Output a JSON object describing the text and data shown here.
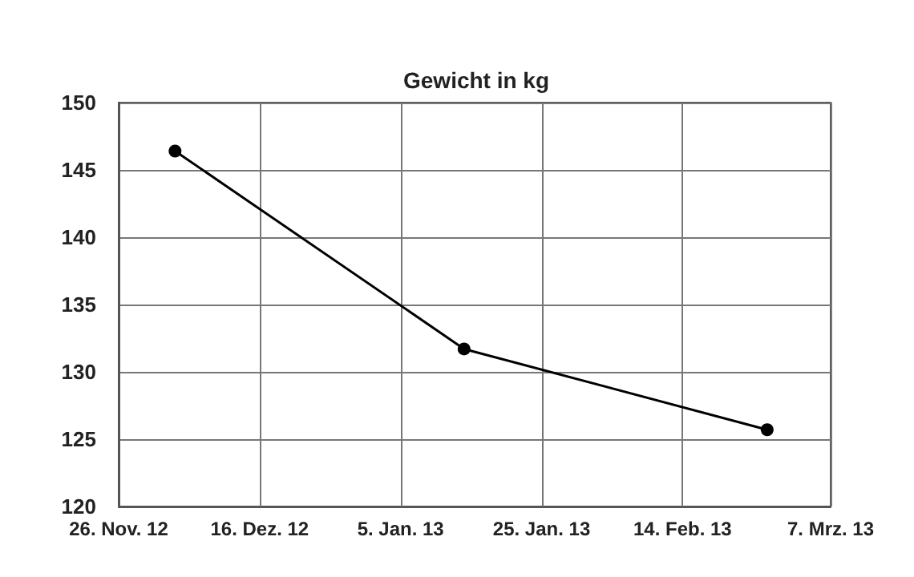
{
  "chart_data": {
    "type": "line",
    "title": "Gewicht in kg",
    "x": [
      "2012-12-04",
      "2013-01-14",
      "2013-02-26"
    ],
    "series": [
      {
        "color": "#000000",
        "values": [
          146.4,
          131.7,
          125.7
        ]
      }
    ],
    "xlim": [
      "2012-11-26",
      "2013-03-07"
    ],
    "xticks": [
      {
        "value": "2012-11-26",
        "label": "26. Nov. 12"
      },
      {
        "value": "2012-12-16",
        "label": "16. Dez. 12"
      },
      {
        "value": "2013-01-05",
        "label": "5. Jan. 13"
      },
      {
        "value": "2013-01-25",
        "label": "25. Jan. 13"
      },
      {
        "value": "2013-02-14",
        "label": "14. Feb. 13"
      },
      {
        "value": "2013-03-07",
        "label": "7. Mrz. 13"
      }
    ],
    "ylim": [
      120,
      150
    ],
    "yticks": [
      120,
      125,
      130,
      135,
      140,
      145,
      150
    ],
    "grid": true,
    "marker": "circle",
    "line_style": "solid"
  }
}
